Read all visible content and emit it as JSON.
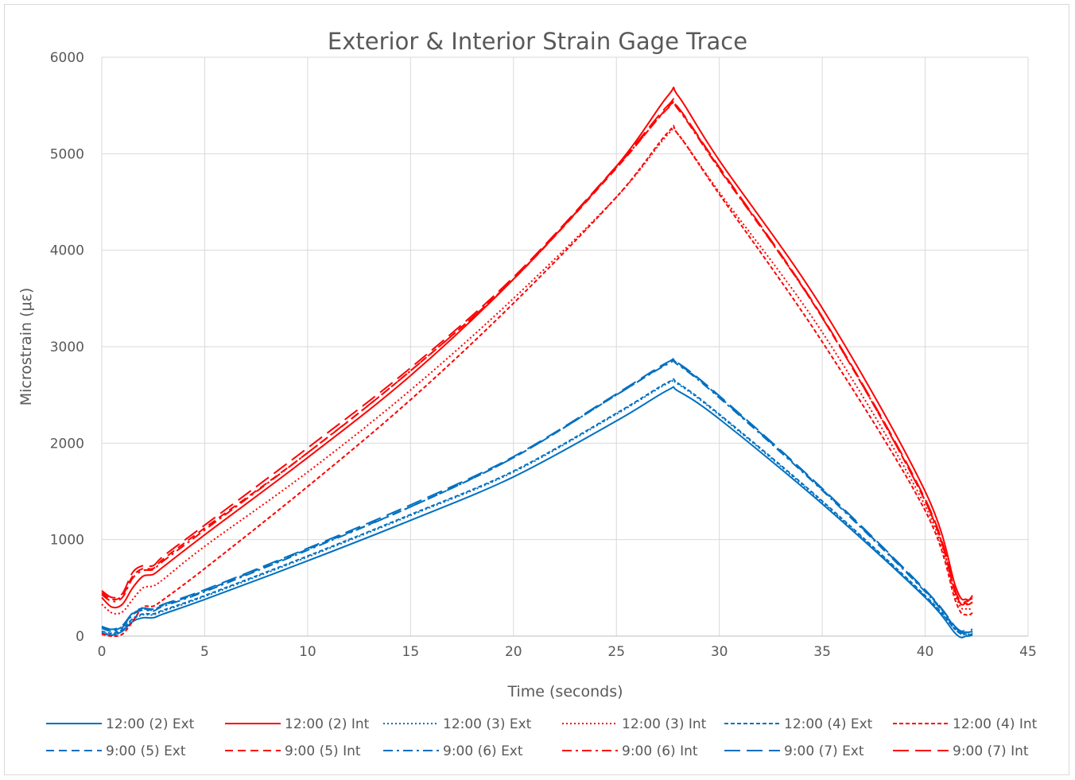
{
  "chart_data": {
    "type": "line",
    "title": "Exterior & Interior Strain Gage Trace",
    "xlabel": "Time (seconds)",
    "ylabel": "Microstrain (με)",
    "xlim": [
      0,
      45
    ],
    "ylim": [
      0,
      6000
    ],
    "x_ticks": [
      "0",
      "5",
      "10",
      "15",
      "20",
      "25",
      "30",
      "35",
      "40",
      "45"
    ],
    "y_ticks": [
      "0",
      "1000",
      "2000",
      "3000",
      "4000",
      "5000",
      "6000"
    ],
    "grid": "on",
    "legend_position": "bottom",
    "series": [
      {
        "name": "12:00 (2) Ext",
        "color": "#0070c0",
        "line_style": "solid",
        "x": [
          0,
          0.5,
          1,
          1.5,
          2,
          2.5,
          3,
          5,
          10,
          15,
          20,
          25,
          27.5,
          28,
          30,
          35,
          40,
          41.5,
          42,
          42.3
        ],
        "y": [
          30,
          10,
          50,
          150,
          190,
          190,
          230,
          380,
          780,
          1200,
          1650,
          2230,
          2550,
          2540,
          2250,
          1370,
          400,
          20,
          0,
          10
        ]
      },
      {
        "name": "12:00 (2) Int",
        "color": "#ff0000",
        "line_style": "solid",
        "x": [
          0,
          0.5,
          1,
          1.5,
          2,
          2.5,
          3,
          5,
          10,
          15,
          20,
          25,
          27.5,
          28,
          30,
          35,
          40,
          41.5,
          42,
          42.3
        ],
        "y": [
          400,
          300,
          330,
          500,
          620,
          640,
          720,
          1050,
          1850,
          2700,
          3700,
          4870,
          5600,
          5600,
          4930,
          3400,
          1500,
          500,
          380,
          390
        ]
      },
      {
        "name": "12:00 (3) Ext",
        "color": "#0070c0",
        "line_style": "dotted",
        "x": [
          0,
          0.5,
          1,
          1.5,
          2,
          2.5,
          3,
          5,
          10,
          15,
          20,
          25,
          27.5,
          28,
          30,
          35,
          40,
          41.5,
          42,
          42.3
        ],
        "y": [
          40,
          20,
          60,
          170,
          220,
          220,
          260,
          410,
          820,
          1250,
          1700,
          2300,
          2620,
          2610,
          2290,
          1390,
          410,
          60,
          20,
          30
        ]
      },
      {
        "name": "12:00 (3) Int",
        "color": "#ff0000",
        "line_style": "dotted",
        "x": [
          0,
          0.5,
          1,
          1.5,
          2,
          2.5,
          3,
          5,
          10,
          15,
          20,
          25,
          27.5,
          28,
          30,
          35,
          40,
          41.5,
          42,
          42.3
        ],
        "y": [
          330,
          240,
          250,
          380,
          500,
          520,
          590,
          930,
          1700,
          2550,
          3500,
          4550,
          5200,
          5200,
          4600,
          3150,
          1350,
          400,
          280,
          300
        ]
      },
      {
        "name": "12:00 (4) Ext",
        "color": "#0070c0",
        "line_style": "dashed",
        "x": [
          0,
          0.5,
          1,
          1.5,
          2,
          2.5,
          3,
          5,
          10,
          15,
          20,
          25,
          27.5,
          28,
          30,
          35,
          40,
          41.5,
          42,
          42.3
        ],
        "y": [
          50,
          30,
          70,
          180,
          230,
          230,
          270,
          420,
          830,
          1260,
          1710,
          2310,
          2630,
          2620,
          2300,
          1400,
          420,
          60,
          20,
          20
        ]
      },
      {
        "name": "12:00 (4) Int",
        "color": "#ff0000",
        "line_style": "dashed",
        "x": [
          0,
          0.5,
          1,
          1.5,
          2,
          2.5,
          3,
          5,
          10,
          15,
          20,
          25,
          27.5,
          28,
          30,
          35,
          40,
          41.5,
          42,
          42.3
        ],
        "y": [
          20,
          0,
          20,
          150,
          300,
          310,
          380,
          700,
          1550,
          2450,
          3450,
          4550,
          5220,
          5200,
          4580,
          3050,
          1300,
          350,
          220,
          240
        ]
      },
      {
        "name": "9:00 (5) Ext",
        "color": "#0070c0",
        "line_style": "dash",
        "x": [
          0,
          0.5,
          1,
          1.5,
          2,
          2.5,
          3,
          5,
          10,
          15,
          20,
          25,
          27.5,
          28,
          30,
          35,
          40,
          41.5,
          42,
          42.3
        ],
        "y": [
          90,
          60,
          100,
          230,
          280,
          270,
          320,
          470,
          900,
          1340,
          1850,
          2500,
          2830,
          2820,
          2480,
          1520,
          470,
          80,
          40,
          50
        ]
      },
      {
        "name": "9:00 (5) Int",
        "color": "#ff0000",
        "line_style": "dash",
        "x": [
          0,
          0.5,
          1,
          1.5,
          2,
          2.5,
          3,
          5,
          10,
          15,
          20,
          25,
          27.5,
          28,
          30,
          35,
          40,
          41.5,
          42,
          42.3
        ],
        "y": [
          450,
          380,
          420,
          620,
          700,
          700,
          800,
          1120,
          1900,
          2750,
          3700,
          4850,
          5480,
          5470,
          4850,
          3300,
          1400,
          430,
          330,
          350
        ]
      },
      {
        "name": "9:00 (6) Ext",
        "color": "#0070c0",
        "line_style": "dash-dot",
        "x": [
          0,
          0.5,
          1,
          1.5,
          2,
          2.5,
          3,
          5,
          10,
          15,
          20,
          25,
          27.5,
          28,
          30,
          35,
          40,
          41.5,
          42,
          42.3
        ],
        "y": [
          80,
          50,
          90,
          220,
          270,
          260,
          310,
          460,
          890,
          1340,
          1850,
          2500,
          2820,
          2810,
          2470,
          1510,
          460,
          70,
          40,
          40
        ]
      },
      {
        "name": "9:00 (6) Int",
        "color": "#ff0000",
        "line_style": "dash-dot",
        "x": [
          0,
          0.5,
          1,
          1.5,
          2,
          2.5,
          3,
          5,
          10,
          15,
          20,
          25,
          27.5,
          28,
          30,
          35,
          40,
          41.5,
          42,
          42.3
        ],
        "y": [
          430,
          360,
          400,
          600,
          680,
          690,
          780,
          1100,
          1900,
          2750,
          3700,
          4860,
          5470,
          5460,
          4840,
          3300,
          1400,
          430,
          340,
          350
        ]
      },
      {
        "name": "9:00 (7) Ext",
        "color": "#0070c0",
        "line_style": "long-dash",
        "x": [
          0,
          0.5,
          1,
          1.5,
          2,
          2.5,
          3,
          5,
          10,
          15,
          20,
          25,
          27.5,
          28,
          30,
          35,
          40,
          41.5,
          42,
          42.3
        ],
        "y": [
          100,
          70,
          110,
          240,
          290,
          280,
          330,
          480,
          910,
          1360,
          1860,
          2510,
          2840,
          2830,
          2490,
          1530,
          480,
          90,
          60,
          70
        ]
      },
      {
        "name": "9:00 (7) Int",
        "color": "#ff0000",
        "line_style": "long-dash",
        "x": [
          0,
          0.5,
          1,
          1.5,
          2,
          2.5,
          3,
          5,
          10,
          15,
          20,
          25,
          27.5,
          28,
          30,
          35,
          40,
          41.5,
          42,
          42.3
        ],
        "y": [
          470,
          400,
          440,
          660,
          730,
          730,
          830,
          1150,
          1950,
          2780,
          3720,
          4870,
          5500,
          5480,
          4860,
          3310,
          1420,
          450,
          360,
          420
        ]
      }
    ]
  }
}
